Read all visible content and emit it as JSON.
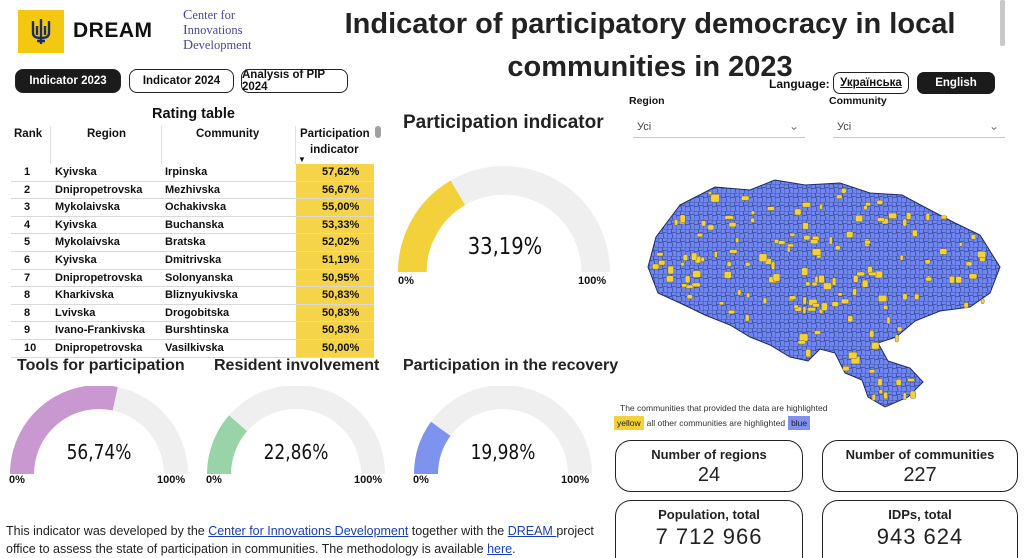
{
  "header": {
    "logo_text": "DREAM",
    "cid_line1_cap": "C",
    "cid_line1_rest": "enter for",
    "cid_line2_cap": "I",
    "cid_line2_rest": "nnovations",
    "cid_line3_cap": "D",
    "cid_line3_rest": "evelopment",
    "title": "Indicator of participatory democracy in local communities in 2023"
  },
  "tabs": [
    {
      "label": "Indicator 2023"
    },
    {
      "label": "Indicator 2024"
    },
    {
      "label": "Analysis of PIP 2024"
    }
  ],
  "language": {
    "label": "Language:",
    "ukrainian": "Українська",
    "english": "English"
  },
  "filters": {
    "region_label": "Region",
    "region_value": "Усі",
    "community_label": "Community",
    "community_value": "Усі"
  },
  "rating_table": {
    "title": "Rating table",
    "headers": {
      "rank": "Rank",
      "region": "Region",
      "community": "Community",
      "indicator_line1": "Participation",
      "indicator_line2": "indicator",
      "sort": "▼"
    },
    "rows": [
      {
        "rank": "1",
        "region": "Kyivska",
        "community": "Irpinska",
        "value": "57,62%"
      },
      {
        "rank": "2",
        "region": "Dnipropetrovska",
        "community": "Mezhivska",
        "value": "56,67%"
      },
      {
        "rank": "3",
        "region": "Mykolaivska",
        "community": "Ochakivska",
        "value": "55,00%"
      },
      {
        "rank": "4",
        "region": "Kyivska",
        "community": "Buchanska",
        "value": "53,33%"
      },
      {
        "rank": "5",
        "region": "Mykolaivska",
        "community": "Bratska",
        "value": "52,02%"
      },
      {
        "rank": "6",
        "region": "Kyivska",
        "community": "Dmitrivska",
        "value": "51,19%"
      },
      {
        "rank": "7",
        "region": "Dnipropetrovska",
        "community": "Solonyanska",
        "value": "50,95%"
      },
      {
        "rank": "8",
        "region": "Kharkivska",
        "community": "Bliznyukivska",
        "value": "50,83%"
      },
      {
        "rank": "8",
        "region": "Lvivska",
        "community": "Drogobitska",
        "value": "50,83%"
      },
      {
        "rank": "9",
        "region": "Ivano-Frankivska",
        "community": "Burshtinska",
        "value": "50,83%"
      },
      {
        "rank": "10",
        "region": "Dnipropetrovska",
        "community": "Vasilkivska",
        "value": "50,00%"
      }
    ]
  },
  "gauges": {
    "main": {
      "title": "Participation indicator",
      "value_text": "33,19%",
      "fraction": 0.3319,
      "min": "0%",
      "max": "100%",
      "color": "#f2d13a"
    },
    "tools": {
      "title": "Tools for participation",
      "value_text": "56,74%",
      "fraction": 0.5674,
      "min": "0%",
      "max": "100%",
      "color": "#c998d1"
    },
    "involvement": {
      "title": "Resident involvement",
      "value_text": "22,86%",
      "fraction": 0.2286,
      "min": "0%",
      "max": "100%",
      "color": "#98d4a8"
    },
    "recovery": {
      "title": "Participation in the recovery",
      "value_text": "19,98%",
      "fraction": 0.1998,
      "min": "0%",
      "max": "100%",
      "color": "#7d93ee"
    }
  },
  "map": {
    "note_line1": "The communities that provided the data are highlighted",
    "yellow": "yellow",
    "middle": "all other communities are highlighted",
    "blue": "blue",
    "colors": {
      "highlight": "#f2d13a",
      "other": "#6f86f2"
    }
  },
  "cards": {
    "regions": {
      "title": "Number of regions",
      "value": "24"
    },
    "communities": {
      "title": "Number of communities",
      "value": "227"
    },
    "population": {
      "title": "Population, total",
      "value": "7 712 966"
    },
    "idps": {
      "title": "IDPs, total",
      "value": "943 624"
    }
  },
  "footer": {
    "t1": "This indicator was developed by the ",
    "link1": "Center for Innovations Development",
    "t2": " together with the ",
    "link2": "DREAM ",
    "t3": "project office to assess the state of participation in communities. The methodology is available ",
    "link3": "here",
    "t4": "."
  }
}
